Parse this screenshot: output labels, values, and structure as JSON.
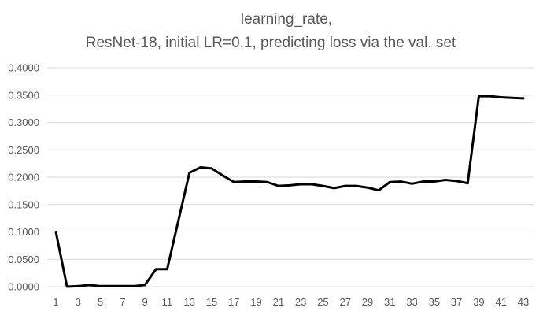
{
  "chart_data": {
    "type": "line",
    "title_lines": [
      "learning_rate,",
      "ResNet-18, initial LR=0.1, predicting loss via the val. set"
    ],
    "xlabel": "",
    "ylabel": "",
    "x": [
      1,
      2,
      3,
      4,
      5,
      6,
      7,
      8,
      9,
      10,
      11,
      12,
      13,
      14,
      15,
      16,
      17,
      18,
      19,
      20,
      21,
      22,
      23,
      24,
      25,
      26,
      27,
      28,
      29,
      30,
      31,
      32,
      33,
      34,
      35,
      36,
      37,
      38,
      39,
      40,
      41,
      42,
      43
    ],
    "x_tick_labels": [
      "1",
      "3",
      "5",
      "7",
      "9",
      "11",
      "13",
      "15",
      "17",
      "19",
      "21",
      "23",
      "25",
      "27",
      "29",
      "31",
      "33",
      "35",
      "37",
      "39",
      "41",
      "43"
    ],
    "ylim": [
      0,
      0.4
    ],
    "y_ticks": [
      0,
      0.05,
      0.1,
      0.15,
      0.2,
      0.25,
      0.3,
      0.35,
      0.4
    ],
    "y_tick_labels": [
      "0.0000",
      "0.0500",
      "0.1000",
      "0.1500",
      "0.2000",
      "0.2500",
      "0.3000",
      "0.3500",
      "0.4000"
    ],
    "grid": true,
    "legend": "none",
    "series": [
      {
        "color": "#000000",
        "values": [
          0.1,
          0.0,
          0.001,
          0.003,
          0.001,
          0.001,
          0.001,
          0.001,
          0.003,
          0.032,
          0.032,
          0.12,
          0.208,
          0.218,
          0.216,
          0.203,
          0.191,
          0.192,
          0.192,
          0.191,
          0.184,
          0.185,
          0.187,
          0.187,
          0.184,
          0.18,
          0.184,
          0.184,
          0.181,
          0.176,
          0.191,
          0.192,
          0.188,
          0.192,
          0.192,
          0.195,
          0.193,
          0.189,
          0.348,
          0.348,
          0.346,
          0.345,
          0.344
        ]
      }
    ]
  }
}
